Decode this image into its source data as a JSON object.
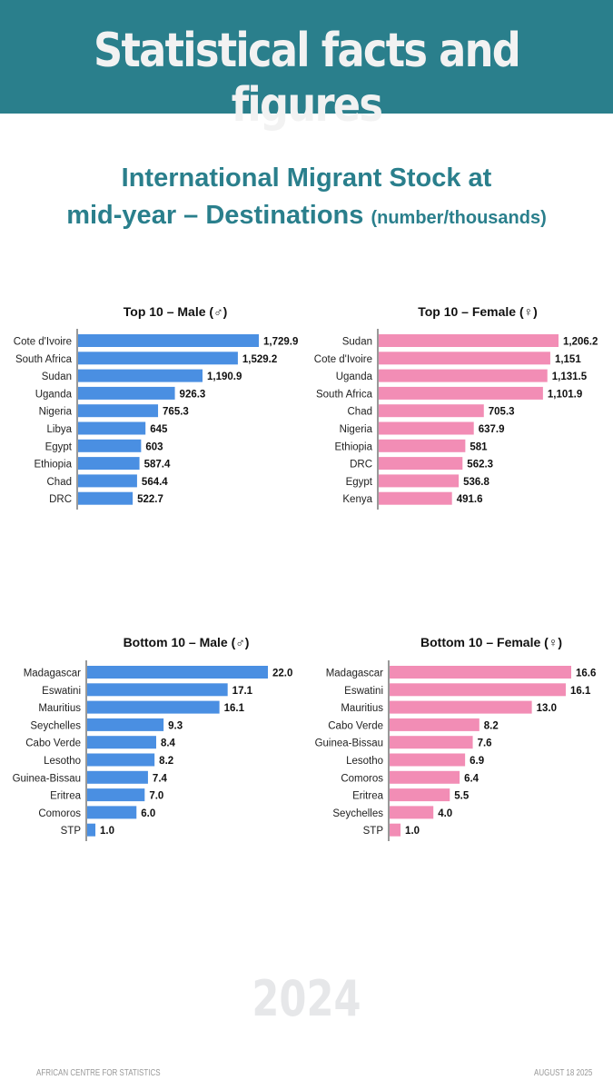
{
  "header": {
    "title": "Statistical facts and figures"
  },
  "subtitle": {
    "line1": "International Migrant Stock at",
    "line2": "mid-year – Destinations",
    "unit": "(number/thousands)"
  },
  "chart_data": [
    {
      "type": "bar",
      "orientation": "horizontal",
      "title": "Top 10 – Male (♂)",
      "color": "#4a8fe2",
      "categories": [
        "Cote d'Ivoire",
        "South Africa",
        "Sudan",
        "Uganda",
        "Nigeria",
        "Libya",
        "Egypt",
        "Ethiopia",
        "Chad",
        "DRC"
      ],
      "values": [
        1729.9,
        1529.2,
        1190.9,
        926.3,
        765.3,
        645,
        603,
        587.4,
        564.4,
        522.7
      ],
      "labels": [
        "1,729.9",
        "1,529.2",
        "1,190.9",
        "926.3",
        "765.3",
        "645",
        "603",
        "587.4",
        "564.4",
        "522.7"
      ]
    },
    {
      "type": "bar",
      "orientation": "horizontal",
      "title": "Top 10 – Female (♀)",
      "color": "#f28db5",
      "categories": [
        "Sudan",
        "Cote d'Ivoire",
        "Uganda",
        "South Africa",
        "Chad",
        "Nigeria",
        "Ethiopia",
        "DRC",
        "Egypt",
        "Kenya"
      ],
      "values": [
        1206.2,
        1151,
        1131.5,
        1101.9,
        705.3,
        637.9,
        581,
        562.3,
        536.8,
        491.6
      ],
      "labels": [
        "1,206.2",
        "1,151",
        "1,131.5",
        "1,101.9",
        "705.3",
        "637.9",
        "581",
        "562.3",
        "536.8",
        "491.6"
      ]
    },
    {
      "type": "bar",
      "orientation": "horizontal",
      "title": "Bottom 10 – Male (♂)",
      "color": "#4a8fe2",
      "categories": [
        "Madagascar",
        "Eswatini",
        "Mauritius",
        "Seychelles",
        "Cabo Verde",
        "Lesotho",
        "Guinea-Bissau",
        "Eritrea",
        "Comoros",
        "STP"
      ],
      "values": [
        22.0,
        17.1,
        16.1,
        9.3,
        8.4,
        8.2,
        7.4,
        7.0,
        6.0,
        1.0
      ],
      "labels": [
        "22.0",
        "17.1",
        "16.1",
        "9.3",
        "8.4",
        "8.2",
        "7.4",
        "7.0",
        "6.0",
        "1.0"
      ]
    },
    {
      "type": "bar",
      "orientation": "horizontal",
      "title": "Bottom 10 – Female (♀)",
      "color": "#f28db5",
      "categories": [
        "Madagascar",
        "Eswatini",
        "Mauritius",
        "Cabo Verde",
        "Guinea-Bissau",
        "Lesotho",
        "Comoros",
        "Eritrea",
        "Seychelles",
        "STP"
      ],
      "values": [
        16.6,
        16.1,
        13.0,
        8.2,
        7.6,
        6.9,
        6.4,
        5.5,
        4.0,
        1.0
      ],
      "labels": [
        "16.6",
        "16.1",
        "13.0",
        "8.2",
        "7.6",
        "6.9",
        "6.4",
        "5.5",
        "4.0",
        "1.0"
      ]
    }
  ],
  "year": "2024",
  "footer": {
    "left": "AFRICAN CENTRE FOR STATISTICS",
    "right": "AUGUST 18 2025"
  }
}
